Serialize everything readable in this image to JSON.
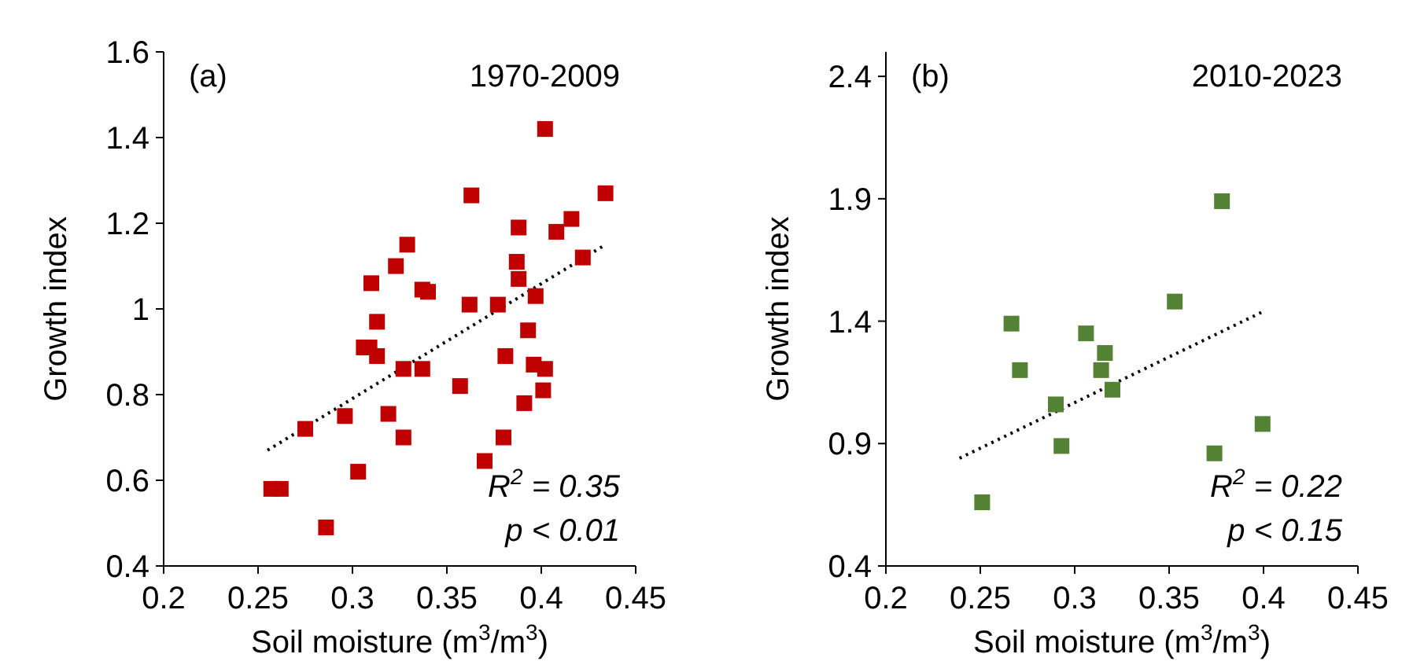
{
  "chart_data": [
    {
      "type": "scatter",
      "title": "1970-2009",
      "xlabel": "Soil moisture (m$^{3}$/m$^{3}$)",
      "ylabel": "Growth index",
      "annotations": [
        "(a)",
        "R$^{2}$ = 0.35",
        "p < 0.01"
      ],
      "xlim": [
        0.2,
        0.45
      ],
      "xticks": [
        0.2,
        0.25,
        0.3,
        0.35,
        0.4,
        0.45
      ],
      "ylim": [
        0.4,
        1.6
      ],
      "yticks": [
        0.4,
        0.6,
        0.8,
        {
          "value": 1.0,
          "label": "1"
        },
        1.2,
        1.4,
        1.6
      ],
      "grid": false,
      "series": [
        {
          "type": "scatter",
          "color": "#c00000",
          "marker": "square",
          "x": [
            0.257,
            0.262,
            0.286,
            0.275,
            0.296,
            0.303,
            0.31,
            0.313,
            0.306,
            0.309,
            0.313,
            0.319,
            0.323,
            0.327,
            0.329,
            0.327,
            0.337,
            0.34,
            0.337,
            0.357,
            0.362,
            0.363,
            0.37,
            0.377,
            0.38,
            0.381,
            0.387,
            0.388,
            0.391,
            0.393,
            0.388,
            0.397,
            0.396,
            0.402,
            0.401,
            0.402,
            0.408,
            0.416,
            0.422,
            0.434
          ],
          "values": [
            0.58,
            0.58,
            0.49,
            0.72,
            0.75,
            0.62,
            1.06,
            0.97,
            0.91,
            0.91,
            0.89,
            0.755,
            1.1,
            0.86,
            1.15,
            0.7,
            1.045,
            1.04,
            0.86,
            0.82,
            1.01,
            1.265,
            0.645,
            1.01,
            0.7,
            0.89,
            1.11,
            1.19,
            0.78,
            0.95,
            1.07,
            1.03,
            0.87,
            0.86,
            0.81,
            1.42,
            1.18,
            1.21,
            1.12,
            1.27
          ]
        },
        {
          "type": "line",
          "color": "#000000",
          "marker": "none",
          "line_style": "dotted",
          "x": [
            0.255,
            0.434
          ],
          "values": [
            0.67,
            1.15
          ]
        }
      ]
    },
    {
      "type": "scatter",
      "title": "2010-2023",
      "xlabel": "Soil moisture (m$^{3}$/m$^{3}$)",
      "ylabel": "Growth index",
      "annotations": [
        "(b)",
        "R$^{2}$ = 0.22",
        "p < 0.15"
      ],
      "xlim": [
        0.2,
        0.45
      ],
      "xticks": [
        0.2,
        0.25,
        0.3,
        0.35,
        0.4,
        0.45
      ],
      "ylim": [
        0.4,
        2.5
      ],
      "yticks": [
        0.4,
        0.9,
        1.4,
        1.9,
        2.4
      ],
      "grid": false,
      "series": [
        {
          "type": "scatter",
          "color": "#548235",
          "marker": "square",
          "x": [
            0.2665,
            0.271,
            0.306,
            0.316,
            0.314,
            0.32,
            0.29,
            0.293,
            0.251,
            0.353,
            0.378,
            0.374,
            0.3995
          ],
          "values": [
            1.39,
            1.2,
            1.35,
            1.27,
            1.2,
            1.12,
            1.06,
            0.89,
            0.66,
            1.48,
            1.89,
            0.86,
            0.98
          ]
        },
        {
          "type": "line",
          "color": "#000000",
          "marker": "none",
          "line_style": "dotted",
          "x": [
            0.239,
            0.4
          ],
          "values": [
            0.84,
            1.44
          ]
        }
      ]
    }
  ]
}
